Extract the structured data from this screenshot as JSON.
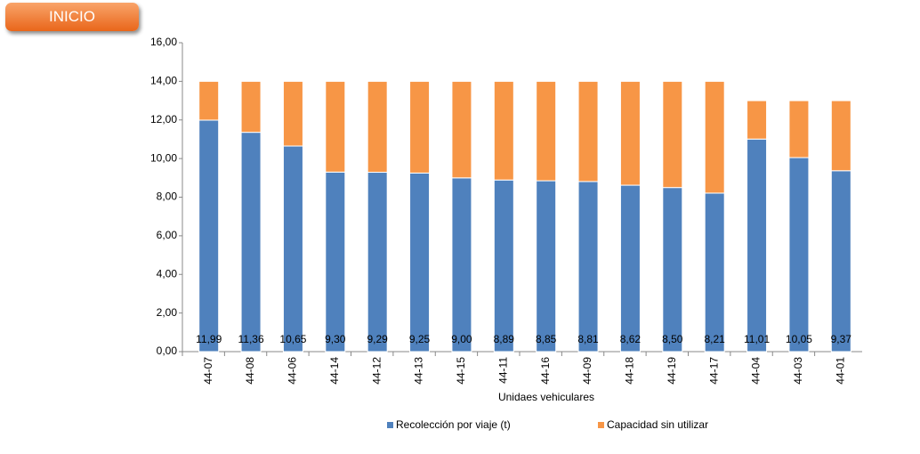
{
  "button": "INICIO",
  "chart_data": {
    "type": "bar",
    "stacked": true,
    "x_label": "Unidaes vehiculares",
    "categories": [
      "44-07",
      "44-08",
      "44-06",
      "44-14",
      "44-12",
      "44-13",
      "44-15",
      "44-11",
      "44-16",
      "44-09",
      "44-18",
      "44-19",
      "44-17",
      "44-04",
      "44-03",
      "44-01"
    ],
    "series": [
      {
        "name": "Recolección por viaje (t)",
        "color": "#4f81bd",
        "values": [
          11.99,
          11.36,
          10.65,
          9.3,
          9.29,
          9.25,
          9.0,
          8.89,
          8.85,
          8.81,
          8.62,
          8.5,
          8.21,
          11.01,
          10.05,
          9.37
        ],
        "value_labels": [
          "11,99",
          "11,36",
          "10,65",
          "9,30",
          "9,29",
          "9,25",
          "9,00",
          "8,89",
          "8,85",
          "8,81",
          "8,62",
          "8,50",
          "8,21",
          "11,01",
          "10,05",
          "9,37"
        ]
      },
      {
        "name": "Capacidad sin utilizar",
        "color": "#f79646",
        "values": [
          2.01,
          2.64,
          3.35,
          4.7,
          4.71,
          4.75,
          5.0,
          5.11,
          5.15,
          5.19,
          5.38,
          5.5,
          5.79,
          1.99,
          2.95,
          3.63
        ]
      }
    ],
    "ylim": [
      0,
      16
    ],
    "yticks": [
      {
        "value": 0,
        "label": "0,00"
      },
      {
        "value": 2,
        "label": "2,00"
      },
      {
        "value": 4,
        "label": "4,00"
      },
      {
        "value": 6,
        "label": "6,00"
      },
      {
        "value": 8,
        "label": "8,00"
      },
      {
        "value": 10,
        "label": "10,00"
      },
      {
        "value": 12,
        "label": "12,00"
      },
      {
        "value": 14,
        "label": "14,00"
      },
      {
        "value": 16,
        "label": "16,00"
      }
    ],
    "legend": "bottom"
  }
}
